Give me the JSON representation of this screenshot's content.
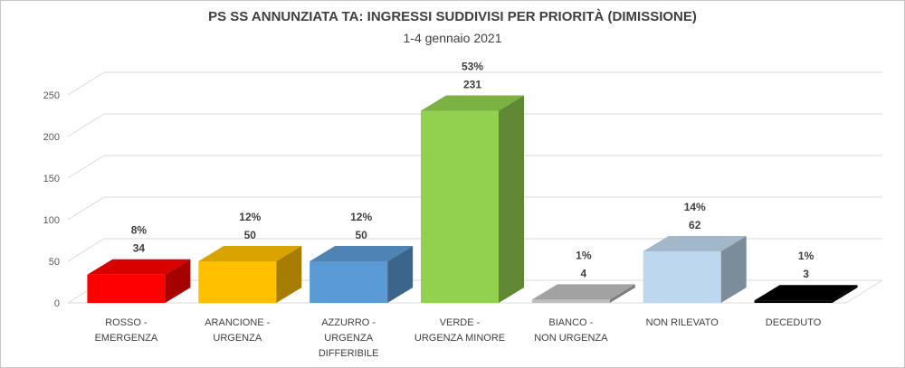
{
  "chart_data": {
    "type": "bar",
    "title": "PS SS ANNUNZIATA TA: INGRESSI SUDDIVISI PER PRIORITÀ (DIMISSIONE)",
    "subtitle": "1-4 gennaio 2021",
    "xlabel": "",
    "ylabel": "",
    "ylim": [
      0,
      250
    ],
    "yticks": [
      0,
      50,
      100,
      150,
      200,
      250
    ],
    "grid": true,
    "categories": [
      [
        "ROSSO -",
        "EMERGENZA"
      ],
      [
        "ARANCIONE -",
        "URGENZA"
      ],
      [
        "AZZURRO -",
        "URGENZA",
        "DIFFERIBILE"
      ],
      [
        "VERDE -",
        "URGENZA MINORE"
      ],
      [
        "BIANCO -",
        "NON URGENZA"
      ],
      [
        "NON RILEVATO"
      ],
      [
        "DECEDUTO"
      ]
    ],
    "values": [
      34,
      50,
      50,
      231,
      4,
      62,
      3
    ],
    "percent_labels": [
      "8%",
      "12%",
      "12%",
      "53%",
      "1%",
      "14%",
      "1%"
    ],
    "colors": [
      "#ff0000",
      "#ffc000",
      "#5b9bd5",
      "#92d050",
      "#bfbfbf",
      "#bdd7ee",
      "#000000"
    ]
  }
}
